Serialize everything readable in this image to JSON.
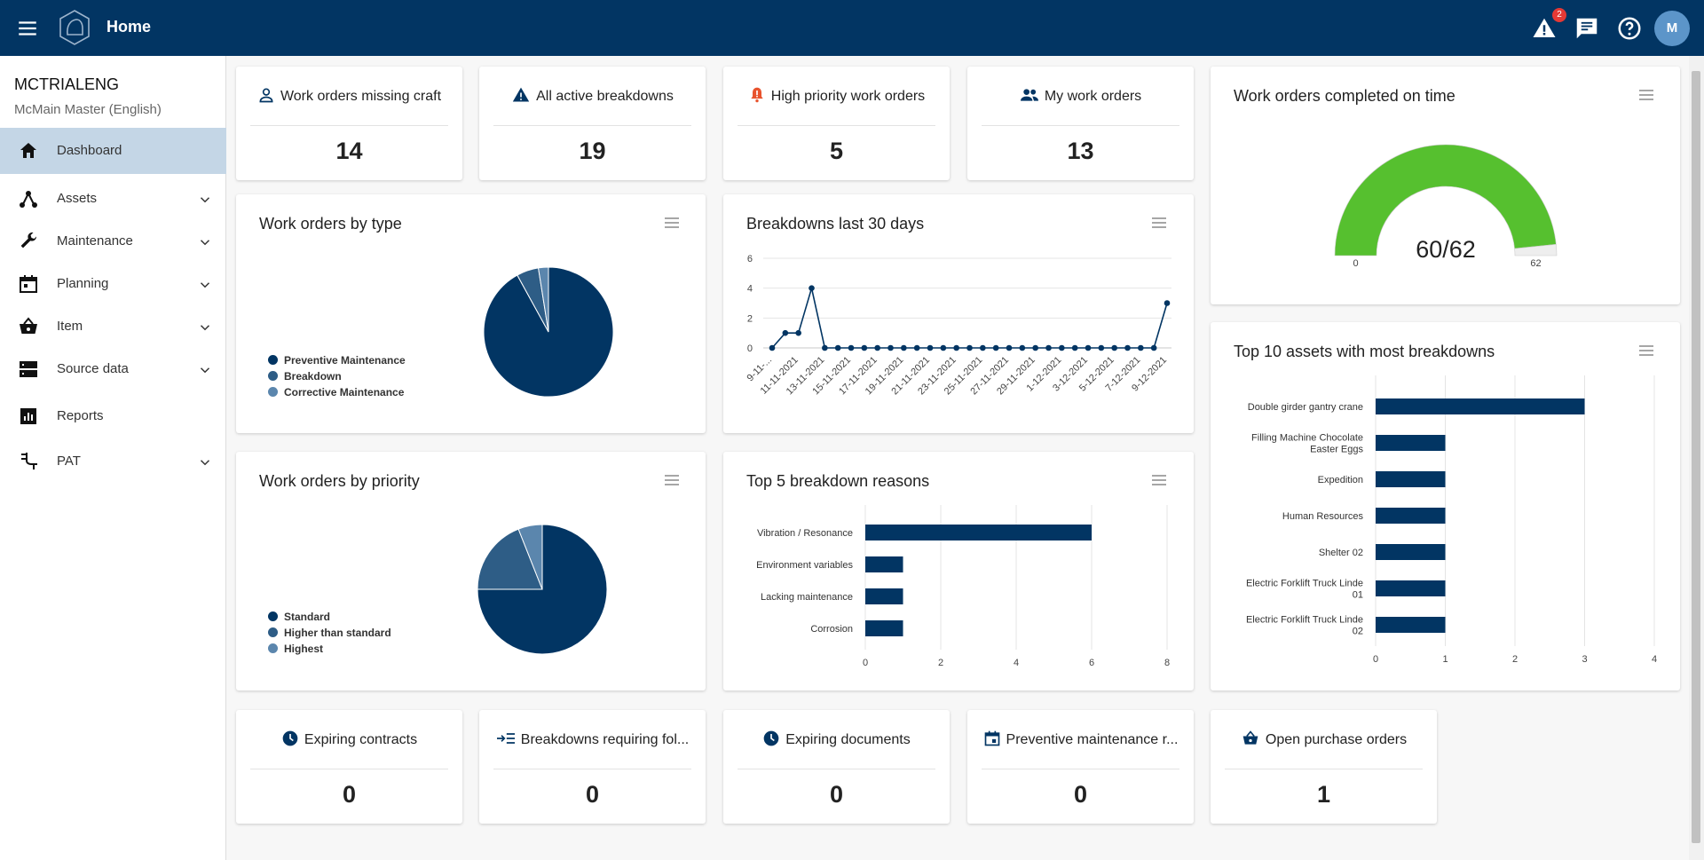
{
  "header": {
    "title": "Home",
    "alert_count": "2",
    "avatar_initial": "M",
    "icons": [
      "menu-icon",
      "logo",
      "warning-icon",
      "chat-icon",
      "help-icon"
    ]
  },
  "sidebar": {
    "org_name": "MCTRIALENG",
    "org_subtitle": "McMain Master (English)",
    "items": [
      {
        "label": "Dashboard",
        "icon": "home-icon",
        "expandable": false,
        "active": true
      },
      {
        "label": "Assets",
        "icon": "hierarchy-icon",
        "expandable": true
      },
      {
        "label": "Maintenance",
        "icon": "wrench-icon",
        "expandable": true
      },
      {
        "label": "Planning",
        "icon": "calendar-icon",
        "expandable": true
      },
      {
        "label": "Item",
        "icon": "basket-icon",
        "expandable": true
      },
      {
        "label": "Source data",
        "icon": "storage-icon",
        "expandable": true
      },
      {
        "label": "Reports",
        "icon": "report-icon",
        "expandable": false
      },
      {
        "label": "PAT",
        "icon": "plug-icon",
        "expandable": true
      }
    ]
  },
  "stats_top": [
    {
      "label": "Work orders missing craft",
      "value": "14",
      "icon": "person-icon"
    },
    {
      "label": "All active breakdowns",
      "value": "19",
      "icon": "warning-icon"
    },
    {
      "label": "High priority work orders",
      "value": "5",
      "icon": "bell-alert-icon"
    },
    {
      "label": "My work orders",
      "value": "13",
      "icon": "group-icon"
    }
  ],
  "stats_bottom": [
    {
      "label": "Expiring contracts",
      "value": "0",
      "icon": "clock-icon"
    },
    {
      "label": "Breakdowns requiring fol...",
      "value": "0",
      "icon": "follow-up-icon"
    },
    {
      "label": "Expiring documents",
      "value": "0",
      "icon": "clock-icon"
    },
    {
      "label": "Preventive maintenance r...",
      "value": "0",
      "icon": "calendar-icon"
    },
    {
      "label": "Open purchase orders",
      "value": "1",
      "icon": "basket-icon"
    }
  ],
  "chart_titles": {
    "by_type": "Work orders by type",
    "breakdowns30": "Breakdowns last 30 days",
    "on_time": "Work orders completed on time",
    "by_priority": "Work orders by priority",
    "top5": "Top 5 breakdown reasons",
    "top10": "Top 10 assets with most breakdowns"
  },
  "colors": {
    "navy": "#023563",
    "mid_blue": "#2e5d86",
    "light_blue": "#5b86ad",
    "green": "#56c02f",
    "header": "#023563"
  },
  "chart_data": [
    {
      "id": "by_type",
      "type": "pie",
      "labels": [
        "Preventive Maintenance",
        "Breakdown",
        "Corrective Maintenance"
      ],
      "values": [
        92,
        5.5,
        2.5
      ],
      "colors": [
        "#023563",
        "#2e5d86",
        "#5b86ad"
      ]
    },
    {
      "id": "breakdowns30",
      "type": "line",
      "x": [
        "9-11-2021",
        "10-11-2021",
        "11-11-2021",
        "12-11-2021",
        "13-11-2021",
        "14-11-2021",
        "15-11-2021",
        "16-11-2021",
        "17-11-2021",
        "18-11-2021",
        "19-11-2021",
        "20-11-2021",
        "21-11-2021",
        "22-11-2021",
        "23-11-2021",
        "24-11-2021",
        "25-11-2021",
        "26-11-2021",
        "27-11-2021",
        "28-11-2021",
        "29-11-2021",
        "30-11-2021",
        "1-12-2021",
        "2-12-2021",
        "3-12-2021",
        "4-12-2021",
        "5-12-2021",
        "6-12-2021",
        "7-12-2021",
        "8-12-2021",
        "9-12-2021"
      ],
      "x_tick_labels": [
        "9-11-...",
        "11-11-2021",
        "13-11-2021",
        "15-11-2021",
        "17-11-2021",
        "19-11-2021",
        "21-11-2021",
        "23-11-2021",
        "25-11-2021",
        "27-11-2021",
        "29-11-2021",
        "1-12-2021",
        "3-12-2021",
        "5-12-2021",
        "7-12-2021",
        "9-12-2021"
      ],
      "values": [
        0,
        1,
        1,
        4,
        0,
        0,
        0,
        0,
        0,
        0,
        0,
        0,
        0,
        0,
        0,
        0,
        0,
        0,
        0,
        0,
        0,
        0,
        0,
        0,
        0,
        0,
        0,
        0,
        0,
        0,
        3
      ],
      "ylim": [
        0,
        6
      ],
      "yticks": [
        0,
        2,
        4,
        6
      ],
      "grid": true
    },
    {
      "id": "on_time",
      "type": "gauge",
      "value": 60,
      "max": 62,
      "min_label": "0",
      "max_label": "62",
      "display": "60/62"
    },
    {
      "id": "by_priority",
      "type": "pie",
      "labels": [
        "Standard",
        "Higher than standard",
        "Highest"
      ],
      "values": [
        75,
        19,
        6
      ],
      "colors": [
        "#023563",
        "#2e5d86",
        "#5b86ad"
      ]
    },
    {
      "id": "top5",
      "type": "bar",
      "orientation": "horizontal",
      "categories": [
        "Vibration / Resonance",
        "Environment variables",
        "Lacking maintenance",
        "Corrosion"
      ],
      "values": [
        6,
        1,
        1,
        1
      ],
      "xlim": [
        0,
        8
      ],
      "xticks": [
        0,
        2,
        4,
        6,
        8
      ],
      "grid": true
    },
    {
      "id": "top10",
      "type": "bar",
      "orientation": "horizontal",
      "categories": [
        [
          "Double girder gantry crane"
        ],
        [
          "Filling Machine Chocolate",
          "Easter Eggs"
        ],
        [
          "Expedition"
        ],
        [
          "Human Resources"
        ],
        [
          "Shelter 02"
        ],
        [
          "Electric Forklift Truck Linde",
          "01"
        ],
        [
          "Electric Forklift Truck Linde",
          "02"
        ]
      ],
      "values": [
        3,
        1,
        1,
        1,
        1,
        1,
        1
      ],
      "xlim": [
        0,
        4
      ],
      "xticks": [
        0,
        1,
        2,
        3,
        4
      ],
      "grid": true
    }
  ]
}
